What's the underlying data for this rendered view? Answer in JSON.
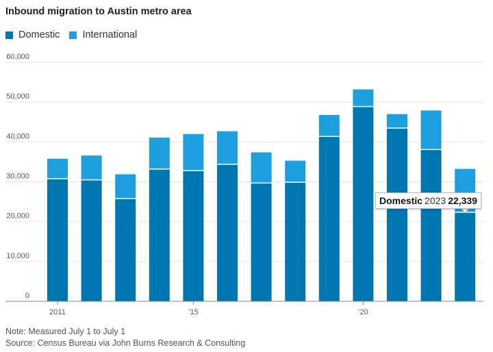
{
  "header": {
    "title": "Inbound migration to Austin metro area"
  },
  "legend": [
    {
      "label": "Domestic",
      "color": "#0076b0"
    },
    {
      "label": "International",
      "color": "#1e9fe0"
    }
  ],
  "chart_data": {
    "type": "bar",
    "stacked": true,
    "title": "Inbound migration to Austin metro area",
    "categories": [
      "2011",
      "2012",
      "2013",
      "2014",
      "2015",
      "2016",
      "2017",
      "2018",
      "2019",
      "2020",
      "2021",
      "2022",
      "2023"
    ],
    "series": [
      {
        "name": "Domestic",
        "color": "#0076b0",
        "values": [
          30800,
          30500,
          25800,
          33200,
          32800,
          34400,
          29700,
          29900,
          41400,
          48900,
          43500,
          38100,
          22339
        ]
      },
      {
        "name": "International",
        "color": "#1e9fe0",
        "values": [
          5000,
          6100,
          6100,
          7900,
          9200,
          8300,
          7700,
          5400,
          5400,
          4300,
          3500,
          9800,
          10900
        ]
      }
    ],
    "x_tick_labels": [
      "2011",
      "’15",
      "’20"
    ],
    "y_ticks": [
      "0",
      "10,000",
      "20,000",
      "30,000",
      "40,000",
      "50,000",
      "60,000"
    ],
    "ylim": [
      0,
      60000
    ],
    "grid": true,
    "legend_position": "top-left"
  },
  "tooltip": {
    "series": "Domestic",
    "year": "2023",
    "value": "22,339"
  },
  "footer": {
    "note": "Note: Measured July 1 to July 1",
    "source": "Source: Census Bureau via John Burns Research & Consulting"
  }
}
